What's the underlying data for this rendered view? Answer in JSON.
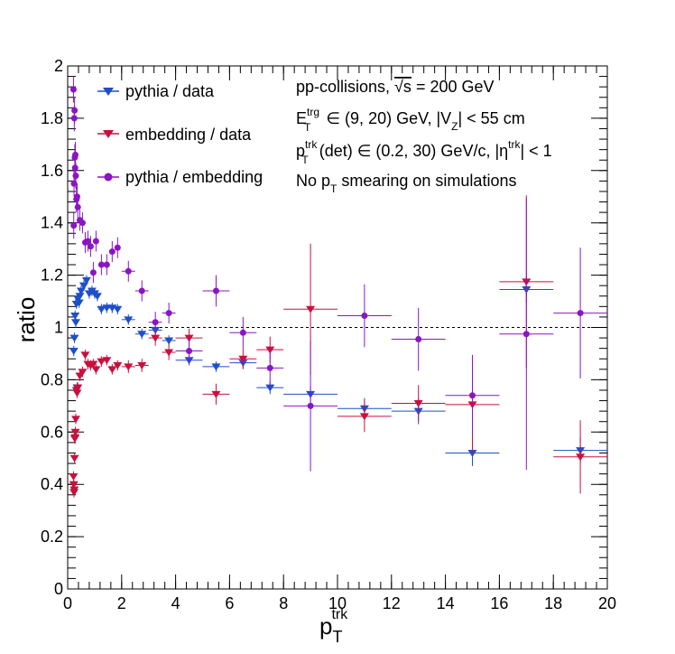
{
  "chart_data": {
    "type": "scatter",
    "xlim": [
      0,
      20
    ],
    "ylim": [
      0,
      2
    ],
    "xticks": [
      "0",
      "2",
      "4",
      "6",
      "8",
      "10",
      "12",
      "14",
      "16",
      "18",
      "20"
    ],
    "yticks": [
      "0",
      "0.2",
      "0.4",
      "0.6",
      "0.8",
      "1",
      "1.2",
      "1.4",
      "1.6",
      "1.8",
      "2"
    ],
    "xlabel": {
      "main": "p",
      "sub": "T",
      "sup": "trk"
    },
    "ylabel": "ratio",
    "reference_line": 1,
    "grid": false,
    "legend_position": "top-left",
    "annotations": {
      "line1": {
        "a": "pp-collisions, ",
        "b": "√s",
        "c": " = 200 GeV"
      },
      "line2": {
        "e": "E",
        "e_sup": "trg",
        "e_sub": "T",
        "mid": " ∈ (9, 20) GeV, |V",
        "v_sub": "Z",
        "end": "| < 55 cm"
      },
      "line3": {
        "p": "p",
        "p_sup": "trk",
        "p_sub": "T",
        "mid": "(det) ∈ (0.2, 30) GeV/c, |η",
        "eta_sup": "trk",
        "end": "| < 1"
      },
      "line4": {
        "a": "No p",
        "sub": "T",
        "b": " smearing on simulations"
      }
    },
    "series": [
      {
        "name": "pythia / data",
        "color": "#1f4fc8",
        "marker": "triangle-down",
        "points": [
          [
            0.225,
            0.91,
            0.025,
            0.02
          ],
          [
            0.25,
            0.96,
            0.025,
            0.02
          ],
          [
            0.275,
            1.045,
            0.025,
            0.02
          ],
          [
            0.3,
            1.02,
            0.025,
            0.02
          ],
          [
            0.325,
            1.09,
            0.025,
            0.02
          ],
          [
            0.35,
            0.77,
            0.025,
            0.02
          ],
          [
            0.375,
            1.11,
            0.025,
            0.02
          ],
          [
            0.425,
            1.095,
            0.025,
            0.02
          ],
          [
            0.45,
            1.12,
            0.025,
            0.02
          ],
          [
            0.5,
            1.14,
            0.05,
            0.02
          ],
          [
            0.6,
            1.16,
            0.05,
            0.02
          ],
          [
            0.7,
            1.18,
            0.05,
            0.02
          ],
          [
            0.8,
            1.13,
            0.05,
            0.02
          ],
          [
            0.9,
            1.14,
            0.05,
            0.02
          ],
          [
            1.0,
            1.13,
            0.05,
            0.02
          ],
          [
            1.1,
            1.12,
            0.05,
            0.02
          ],
          [
            1.25,
            1.07,
            0.1,
            0.02
          ],
          [
            1.45,
            1.075,
            0.1,
            0.02
          ],
          [
            1.65,
            1.075,
            0.1,
            0.02
          ],
          [
            1.85,
            1.07,
            0.1,
            0.02
          ],
          [
            2.25,
            1.03,
            0.25,
            0.02
          ],
          [
            2.75,
            0.975,
            0.25,
            0.02
          ],
          [
            3.25,
            0.99,
            0.25,
            0.02
          ],
          [
            3.75,
            0.95,
            0.25,
            0.02
          ],
          [
            4.5,
            0.875,
            0.5,
            0.02
          ],
          [
            5.5,
            0.85,
            0.5,
            0.02
          ],
          [
            6.5,
            0.865,
            0.5,
            0.02
          ],
          [
            7.5,
            0.77,
            0.5,
            0.025
          ],
          [
            9.0,
            0.745,
            1.0,
            0.03
          ],
          [
            11.0,
            0.69,
            1.0,
            0.04
          ],
          [
            13.0,
            0.68,
            1.0,
            0.05
          ],
          [
            15.0,
            0.52,
            1.0,
            0.05
          ],
          [
            17.0,
            1.145,
            1.0,
            0.05
          ],
          [
            19.0,
            0.53,
            1.0,
            0.05
          ]
        ]
      },
      {
        "name": "embedding / data",
        "color": "#c8103e",
        "marker": "triangle-down",
        "points": [
          [
            0.215,
            0.43,
            0.015,
            0.02
          ],
          [
            0.225,
            0.4,
            0.015,
            0.02
          ],
          [
            0.235,
            0.37,
            0.015,
            0.02
          ],
          [
            0.245,
            0.38,
            0.015,
            0.02
          ],
          [
            0.255,
            0.5,
            0.015,
            0.02
          ],
          [
            0.265,
            0.575,
            0.015,
            0.02
          ],
          [
            0.275,
            0.58,
            0.015,
            0.02
          ],
          [
            0.285,
            0.6,
            0.015,
            0.02
          ],
          [
            0.3,
            0.65,
            0.02,
            0.02
          ],
          [
            0.325,
            0.76,
            0.025,
            0.02
          ],
          [
            0.35,
            0.75,
            0.025,
            0.02
          ],
          [
            0.375,
            0.77,
            0.025,
            0.02
          ],
          [
            0.45,
            0.815,
            0.05,
            0.02
          ],
          [
            0.55,
            0.83,
            0.05,
            0.02
          ],
          [
            0.65,
            0.895,
            0.05,
            0.02
          ],
          [
            0.75,
            0.86,
            0.05,
            0.02
          ],
          [
            0.85,
            0.855,
            0.05,
            0.02
          ],
          [
            0.95,
            0.86,
            0.05,
            0.02
          ],
          [
            1.05,
            0.84,
            0.05,
            0.02
          ],
          [
            1.25,
            0.87,
            0.1,
            0.02
          ],
          [
            1.45,
            0.875,
            0.1,
            0.02
          ],
          [
            1.65,
            0.84,
            0.1,
            0.02
          ],
          [
            1.85,
            0.855,
            0.1,
            0.02
          ],
          [
            2.25,
            0.85,
            0.25,
            0.025
          ],
          [
            2.75,
            0.855,
            0.25,
            0.025
          ],
          [
            3.25,
            0.96,
            0.25,
            0.03
          ],
          [
            3.75,
            0.905,
            0.25,
            0.03
          ],
          [
            4.5,
            0.96,
            0.5,
            0.035
          ],
          [
            5.5,
            0.745,
            0.5,
            0.04
          ],
          [
            6.5,
            0.88,
            0.5,
            0.04
          ],
          [
            7.5,
            0.915,
            0.5,
            0.05
          ],
          [
            9.0,
            1.07,
            1.0,
            0.25
          ],
          [
            11.0,
            0.66,
            1.0,
            0.06
          ],
          [
            13.0,
            0.71,
            1.0,
            0.07
          ],
          [
            15.0,
            0.705,
            1.0,
            0.19
          ],
          [
            17.0,
            1.175,
            1.0,
            0.33
          ],
          [
            19.0,
            0.505,
            1.0,
            0.14
          ]
        ]
      },
      {
        "name": "pythia / embedding",
        "color": "#8b14c4",
        "marker": "circle",
        "points": [
          [
            0.215,
            1.91,
            0.015,
            0.05
          ],
          [
            0.225,
            1.39,
            0.015,
            0.05
          ],
          [
            0.235,
            1.55,
            0.015,
            0.05
          ],
          [
            0.245,
            1.8,
            0.015,
            0.05
          ],
          [
            0.255,
            1.83,
            0.015,
            0.05
          ],
          [
            0.265,
            1.65,
            0.015,
            0.05
          ],
          [
            0.275,
            1.61,
            0.015,
            0.05
          ],
          [
            0.285,
            1.66,
            0.015,
            0.05
          ],
          [
            0.3,
            1.58,
            0.02,
            0.05
          ],
          [
            0.325,
            1.49,
            0.025,
            0.05
          ],
          [
            0.35,
            1.5,
            0.025,
            0.05
          ],
          [
            0.375,
            1.46,
            0.025,
            0.05
          ],
          [
            0.45,
            1.41,
            0.05,
            0.04
          ],
          [
            0.55,
            1.4,
            0.05,
            0.04
          ],
          [
            0.65,
            1.325,
            0.05,
            0.04
          ],
          [
            0.75,
            1.33,
            0.05,
            0.04
          ],
          [
            0.85,
            1.31,
            0.05,
            0.04
          ],
          [
            0.95,
            1.21,
            0.05,
            0.04
          ],
          [
            1.05,
            1.33,
            0.05,
            0.04
          ],
          [
            1.25,
            1.24,
            0.1,
            0.04
          ],
          [
            1.45,
            1.24,
            0.1,
            0.04
          ],
          [
            1.65,
            1.29,
            0.1,
            0.04
          ],
          [
            1.85,
            1.305,
            0.1,
            0.04
          ],
          [
            2.25,
            1.215,
            0.25,
            0.04
          ],
          [
            2.75,
            1.14,
            0.25,
            0.04
          ],
          [
            3.25,
            1.02,
            0.25,
            0.04
          ],
          [
            3.75,
            1.055,
            0.25,
            0.04
          ],
          [
            4.5,
            0.91,
            0.5,
            0.05
          ],
          [
            5.5,
            1.14,
            0.5,
            0.06
          ],
          [
            6.5,
            0.98,
            0.5,
            0.06
          ],
          [
            7.5,
            0.845,
            0.5,
            0.07
          ],
          [
            9.0,
            0.7,
            1.0,
            0.25
          ],
          [
            11.0,
            1.045,
            1.0,
            0.12
          ],
          [
            13.0,
            0.955,
            1.0,
            0.12
          ],
          [
            15.0,
            0.74,
            1.0,
            0.15
          ],
          [
            17.0,
            0.975,
            1.0,
            0.52
          ],
          [
            19.0,
            1.055,
            1.0,
            0.25
          ]
        ]
      }
    ]
  }
}
